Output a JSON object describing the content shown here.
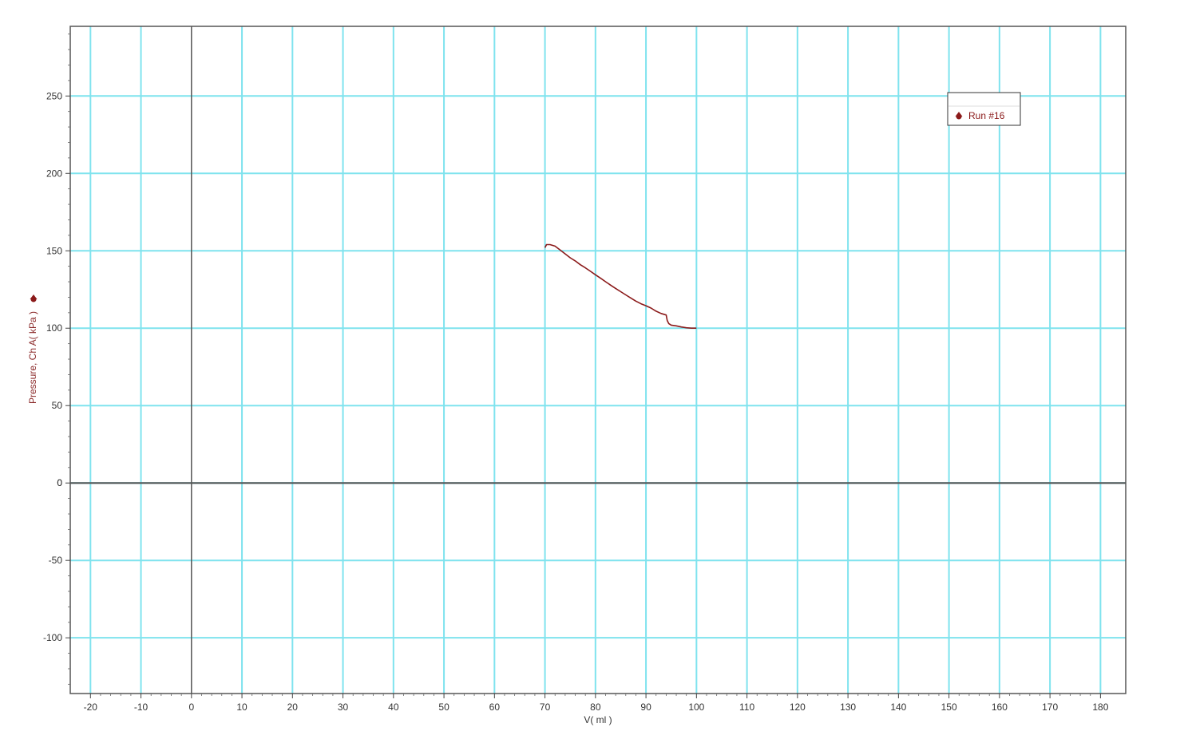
{
  "chart_data": {
    "type": "line",
    "xlabel": "V( ml )",
    "ylabel": "Pressure, Ch A( kPa )",
    "xlim": [
      -24,
      185
    ],
    "ylim": [
      -136,
      295
    ],
    "x_ticks": [
      -20,
      -10,
      0,
      10,
      20,
      30,
      40,
      50,
      60,
      70,
      80,
      90,
      100,
      110,
      120,
      130,
      140,
      150,
      160,
      170,
      180
    ],
    "y_ticks": [
      -100,
      -50,
      0,
      50,
      100,
      150,
      200,
      250
    ],
    "grid": true,
    "legend_position": "top-right",
    "colors": {
      "grid": "#7fe3ee",
      "axis_zero": "#555555",
      "series": "#8b1a1a",
      "ylabel": "#8b2a2a",
      "frame": "#555555"
    },
    "series": [
      {
        "name": "Run #16",
        "x": [
          70,
          70.3,
          71,
          72,
          73,
          74,
          75,
          76,
          77,
          78,
          79,
          80,
          81,
          82,
          83,
          84,
          85,
          86,
          87,
          88,
          89,
          90,
          91,
          92,
          93,
          94,
          94.2,
          94.5,
          95,
          96,
          97,
          98,
          99,
          100
        ],
        "y": [
          152,
          154,
          154,
          153,
          150.5,
          148,
          145.5,
          143.5,
          141,
          139,
          136.8,
          134.5,
          132.3,
          130,
          127.8,
          125.7,
          123.6,
          121.5,
          119.5,
          117.5,
          115.8,
          114.5,
          113,
          111,
          109.5,
          108.5,
          105,
          103,
          102,
          101.5,
          100.8,
          100.3,
          100,
          100
        ]
      }
    ]
  }
}
